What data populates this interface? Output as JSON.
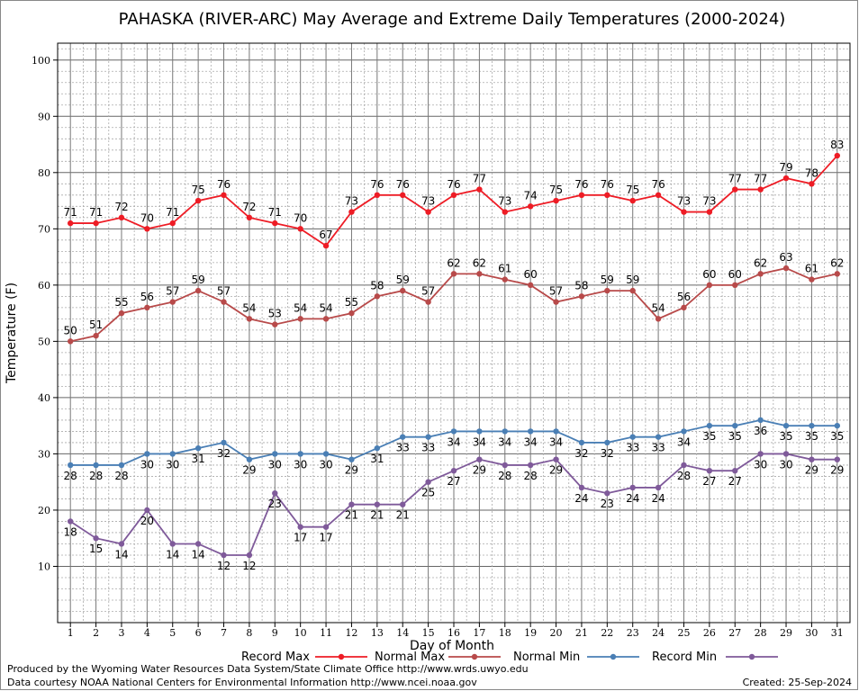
{
  "chart_data": {
    "type": "line",
    "title": "PAHASKA (RIVER-ARC) May Average and Extreme Daily Temperatures (2000-2024)",
    "xlabel": "Day of Month",
    "ylabel": "Temperature (F)",
    "ylim": [
      0,
      103
    ],
    "yticks": [
      10,
      20,
      30,
      40,
      50,
      60,
      70,
      80,
      90,
      100
    ],
    "x": [
      1,
      2,
      3,
      4,
      5,
      6,
      7,
      8,
      9,
      10,
      11,
      12,
      13,
      14,
      15,
      16,
      17,
      18,
      19,
      20,
      21,
      22,
      23,
      24,
      25,
      26,
      27,
      28,
      29,
      30,
      31
    ],
    "grid": true,
    "legend_position": "bottom",
    "series": [
      {
        "name": "Record Max",
        "color": "#ee1c25",
        "values": [
          71,
          71,
          72,
          70,
          71,
          75,
          76,
          72,
          71,
          70,
          67,
          73,
          76,
          76,
          73,
          76,
          77,
          73,
          74,
          75,
          76,
          76,
          75,
          76,
          73,
          73,
          77,
          77,
          79,
          78,
          83
        ]
      },
      {
        "name": "Normal Max",
        "color": "#b84a4a",
        "values": [
          50,
          51,
          55,
          56,
          57,
          59,
          57,
          54,
          53,
          54,
          54,
          55,
          58,
          59,
          57,
          62,
          62,
          61,
          60,
          57,
          58,
          59,
          59,
          54,
          56,
          60,
          60,
          62,
          63,
          61,
          62
        ]
      },
      {
        "name": "Normal Min",
        "color": "#4a7fb5",
        "values": [
          28,
          28,
          28,
          30,
          30,
          31,
          32,
          29,
          30,
          30,
          30,
          29,
          31,
          33,
          33,
          34,
          34,
          34,
          34,
          34,
          32,
          32,
          33,
          33,
          34,
          35,
          35,
          36,
          35,
          35,
          35
        ]
      },
      {
        "name": "Record Min",
        "color": "#7f5a9a",
        "values": [
          18,
          15,
          14,
          20,
          14,
          14,
          12,
          12,
          23,
          17,
          17,
          21,
          21,
          21,
          25,
          27,
          29,
          28,
          28,
          29,
          24,
          23,
          24,
          24,
          28,
          27,
          27,
          30,
          30,
          29,
          29
        ]
      }
    ]
  },
  "footer": {
    "producer": "Produced by the Wyoming Water Resources Data System/State Climate Office http://www.wrds.uwyo.edu",
    "source": "Data courtesy NOAA National Centers for Environmental Information http://www.ncei.noaa.gov",
    "created": "Created:  25-Sep-2024"
  }
}
